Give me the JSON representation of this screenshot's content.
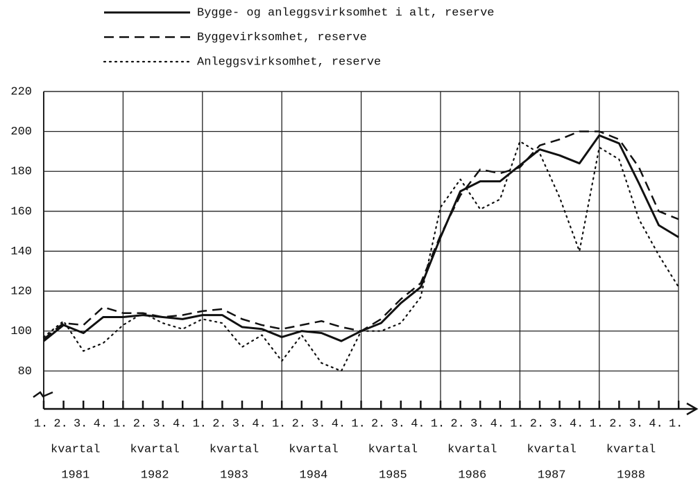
{
  "chart_data": {
    "type": "line",
    "categories": [
      "1.",
      "2.",
      "3.",
      "4.",
      "1.",
      "2.",
      "3.",
      "4.",
      "1.",
      "2.",
      "3.",
      "4.",
      "1.",
      "2.",
      "3.",
      "4.",
      "1.",
      "2.",
      "3.",
      "4.",
      "1.",
      "2.",
      "3.",
      "4.",
      "1.",
      "2.",
      "3.",
      "4.",
      "1.",
      "2.",
      "3.",
      "4.",
      "1."
    ],
    "groups": [
      {
        "label": "kvartal",
        "year": "1981"
      },
      {
        "label": "kvartal",
        "year": "1982"
      },
      {
        "label": "kvartal",
        "year": "1983"
      },
      {
        "label": "kvartal",
        "year": "1984"
      },
      {
        "label": "kvartal",
        "year": "1985"
      },
      {
        "label": "kvartal",
        "year": "1986"
      },
      {
        "label": "kvartal",
        "year": "1987"
      },
      {
        "label": "kvartal",
        "year": "1988"
      }
    ],
    "series": [
      {
        "name": "Bygge- og anleggsvirksomhet i alt, reserve",
        "color": "#111111",
        "style": "solid",
        "values": [
          95,
          103,
          99,
          107,
          107,
          108,
          107,
          106,
          108,
          108,
          102,
          101,
          97,
          100,
          99,
          95,
          100,
          104,
          114,
          122,
          147,
          170,
          175,
          175,
          183,
          191,
          188,
          184,
          198,
          194,
          174,
          153,
          147
        ]
      },
      {
        "name": "Byggevirksomhet, reserve",
        "color": "#111111",
        "style": "dashed",
        "values": [
          96,
          104,
          103,
          112,
          109,
          109,
          107,
          108,
          110,
          111,
          106,
          103,
          101,
          103,
          105,
          102,
          100,
          106,
          116,
          124,
          148,
          168,
          181,
          179,
          182,
          193,
          196,
          200,
          200,
          196,
          182,
          160,
          156
        ]
      },
      {
        "name": "Anleggsvirksomhet, reserve",
        "color": "#111111",
        "style": "dotted",
        "values": [
          97,
          105,
          90,
          94,
          103,
          109,
          104,
          101,
          106,
          104,
          92,
          98,
          85,
          98,
          84,
          80,
          100,
          100,
          104,
          117,
          162,
          176,
          161,
          166,
          195,
          189,
          167,
          140,
          192,
          186,
          156,
          138,
          122
        ]
      }
    ],
    "ylim": [
      61,
      220
    ],
    "yticks": [
      80,
      100,
      120,
      140,
      160,
      180,
      200,
      220
    ],
    "grid": true
  }
}
